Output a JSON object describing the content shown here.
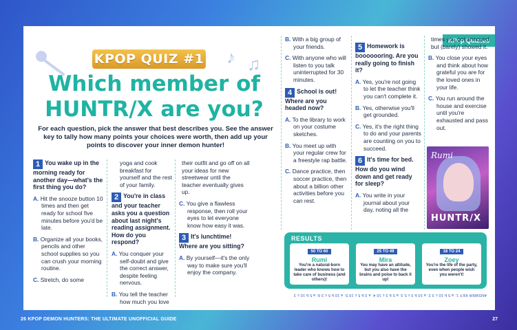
{
  "tag": "KPop Quizzes",
  "badge": "KPOP QUIZ #1",
  "headline1": "Which member of",
  "headline2": "HUNTR/X are you?",
  "intro": "For each question, pick the answer that best describes you. See the answer key to tally how many points your choices were worth, then add up your points to discover your inner demon hunter!",
  "q1": {
    "num": "1",
    "text": "You wake up in the morning ready for another day—what's the first thing you do?",
    "a": "Hit the snooze button 10 times and then get ready for school five minutes before you'd be late.",
    "b": "Organize all your books, pencils and other school supplies so you can crush your morning routine.",
    "c": "Stretch, do some",
    "c2": "yoga and cook breakfast for yourself and the rest of your family."
  },
  "q2": {
    "num": "2",
    "text": "You're in class and your teacher asks you a question about last night's reading assignment. How do you respond?",
    "a": "You conquer your self-doubt and give the correct answer, despite feeling nervous.",
    "b": "You tell the teacher how much you love",
    "b2": "their outfit and go off on all your ideas for new streetwear until the teacher eventually gives up.",
    "c": "You give a flawless response, then roll your eyes to let everyone know how easy it was."
  },
  "q3": {
    "num": "3",
    "text": "It's lunchtime! Where are you sitting?",
    "a": "By yourself—it's the only way to make sure you'll enjoy the company.",
    "b": "With a big group of your friends.",
    "c": "With anyone who will listen to you talk uninterrupted for 30 minutes."
  },
  "q4": {
    "num": "4",
    "text": "School is out! Where are you headed now?",
    "a": "To the library to work on your costume sketches.",
    "b": "You meet up with your regular crew for a freestyle rap battle.",
    "c": "Dance practice, then soccer practice, then about a billion other activities before you can rest."
  },
  "q5": {
    "num": "5",
    "text": "Homework is booooooring. Are you really going to finish it?",
    "a": "Yes, you're not going to let the teacher think you can't complete it.",
    "b": "Yes, otherwise you'll get grounded.",
    "c": "Yes, it's the right thing to do and your parents are counting on you to succeed."
  },
  "q6": {
    "num": "6",
    "text": "It's time for bed. How do you wind down and get ready for sleep?",
    "a": "You write in your journal about your day, noting all the",
    "a2": "times you got annoyed but (barely) showed it.",
    "b": "You close your eyes and think about how grateful you are for the loved ones in your life.",
    "c": "You run around the house and exercise until you're exhausted and pass out."
  },
  "results": {
    "title": "RESULTS",
    "items": [
      {
        "range": "50 TO 60",
        "name": "Rumi",
        "desc": "You're a natural-born leader who knows how to take care of business (and others)!"
      },
      {
        "range": "25 TO 49",
        "name": "Mira",
        "desc": "You may have an attitude, but you also have the brains and poise to back it up!"
      },
      {
        "range": "18 TO 24",
        "name": "Zoey",
        "desc": "You're the life of the party, even when people wish you weren't!"
      }
    ]
  },
  "answer_key": "ANSWER KEY 1: a 5 b 10 c 3  2: a 10 b 3 c 5  3: a 5 b 3 c 10  4: a 3 b 5 c 10  5: a 10 b 5 c 3  6: a 5 b 10 c 3",
  "cover": {
    "title": "Rumi",
    "logo": "HUNTR/X"
  },
  "footer_left": "26  KPOP DEMON HUNTERS: THE ULTIMATE UNOFFICIAL GUIDE",
  "footer_right": "27",
  "letters": {
    "a": "A.",
    "b": "B.",
    "c": "C."
  }
}
